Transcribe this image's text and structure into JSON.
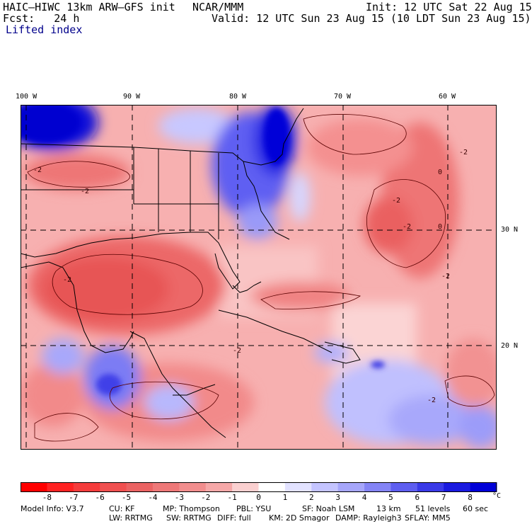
{
  "header": {
    "model": "HAIC–HIWC 13km ARW–GFS init",
    "org": "NCAR/MMM",
    "init": "Init: 12 UTC Sat 22 Aug 15",
    "fcst": "Fcst:   24 h",
    "valid": "Valid: 12 UTC Sun 23 Aug 15 (10 LDT Sun 23 Aug 15)",
    "field": "Lifted index"
  },
  "map": {
    "lon_labels": [
      "100 W",
      "90 W",
      "80 W",
      "70 W",
      "60 W"
    ],
    "lat_labels": [
      "30 N",
      "20 N"
    ],
    "contour_labels": [
      "-2",
      "-2",
      "-2",
      "-2",
      "-2",
      "-2",
      "-2",
      "0",
      "0",
      "-2",
      "-2"
    ]
  },
  "colorbar": {
    "ticks": [
      "-8",
      "-7",
      "-6",
      "-5",
      "-4",
      "-3",
      "-2",
      "-1",
      "0",
      "1",
      "2",
      "3",
      "4",
      "5",
      "6",
      "7",
      "8"
    ],
    "unit": "°C",
    "colors": [
      "#ff0000",
      "#ff2222",
      "#f53c3c",
      "#f05050",
      "#eb6363",
      "#ee7878",
      "#f28e8e",
      "#f6a8a8",
      "#fbd0d0",
      "#ffffff",
      "#e2e2ff",
      "#c4c4ff",
      "#a6a6fb",
      "#8484f6",
      "#5e5ef0",
      "#3a3ae8",
      "#1a1ae0",
      "#0000d8"
    ]
  },
  "footer": {
    "line1": [
      "Model Info: V3.7",
      "CU: KF",
      "MP: Thompson",
      "PBL: YSU",
      "SF: Noah LSM",
      "13 km",
      "51 levels",
      "60 sec"
    ],
    "line2": [
      "LW: RRTMG",
      "SW: RRTMG",
      "DIFF: full",
      "KM: 2D Smagor",
      "DAMP: Rayleigh3",
      "SFLAY: MM5"
    ]
  }
}
